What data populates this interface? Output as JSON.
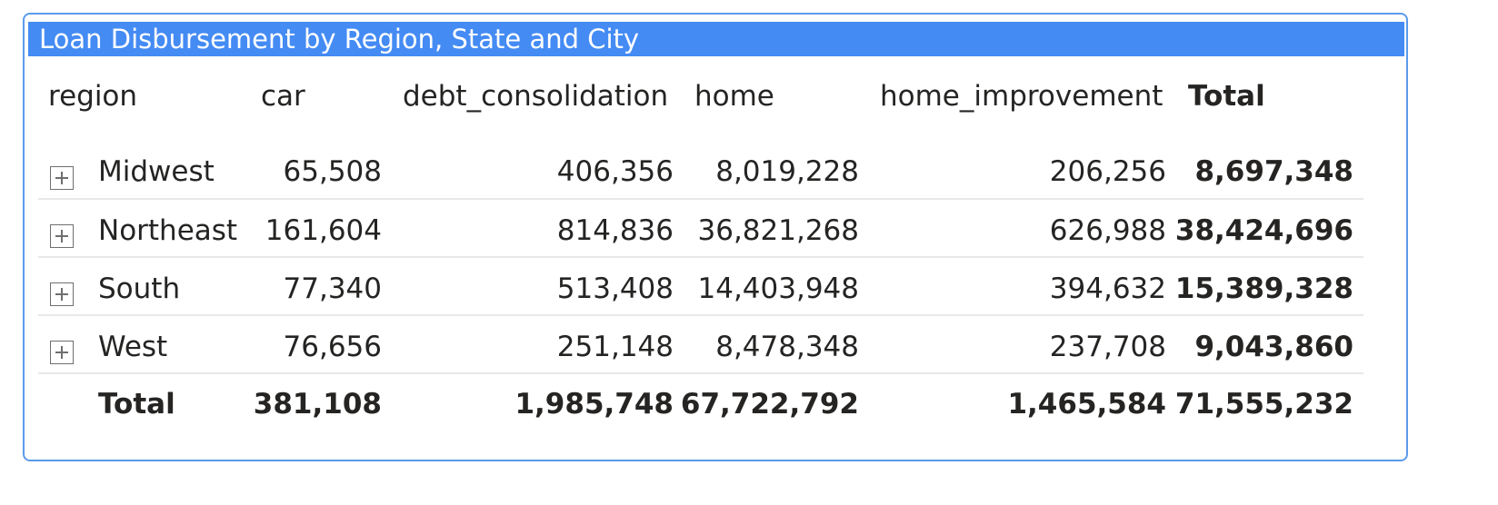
{
  "visual": {
    "title": "Loan Disbursement by Region, State and City"
  },
  "table": {
    "headers": [
      "region",
      "car",
      "debt_consolidation",
      "home",
      "home_improvement",
      "Total"
    ],
    "rows": [
      {
        "region": "Midwest",
        "car": "65,508",
        "debt_consolidation": "406,356",
        "home": "8,019,228",
        "home_improvement": "206,256",
        "total": "8,697,348"
      },
      {
        "region": "Northeast",
        "car": "161,604",
        "debt_consolidation": "814,836",
        "home": "36,821,268",
        "home_improvement": "626,988",
        "total": "38,424,696"
      },
      {
        "region": "South",
        "car": "77,340",
        "debt_consolidation": "513,408",
        "home": "14,403,948",
        "home_improvement": "394,632",
        "total": "15,389,328"
      },
      {
        "region": "West",
        "car": "76,656",
        "debt_consolidation": "251,148",
        "home": "8,478,348",
        "home_improvement": "237,708",
        "total": "9,043,860"
      }
    ],
    "totals": {
      "label": "Total",
      "car": "381,108",
      "debt_consolidation": "1,985,748",
      "home": "67,722,792",
      "home_improvement": "1,465,584",
      "total": "71,555,232"
    }
  },
  "colors": {
    "title_bar": "#448bf4",
    "border": "#5b9bea",
    "text": "#252423",
    "separator": "#e8e8e8"
  },
  "icons": {
    "expand": "plus-square-icon"
  }
}
